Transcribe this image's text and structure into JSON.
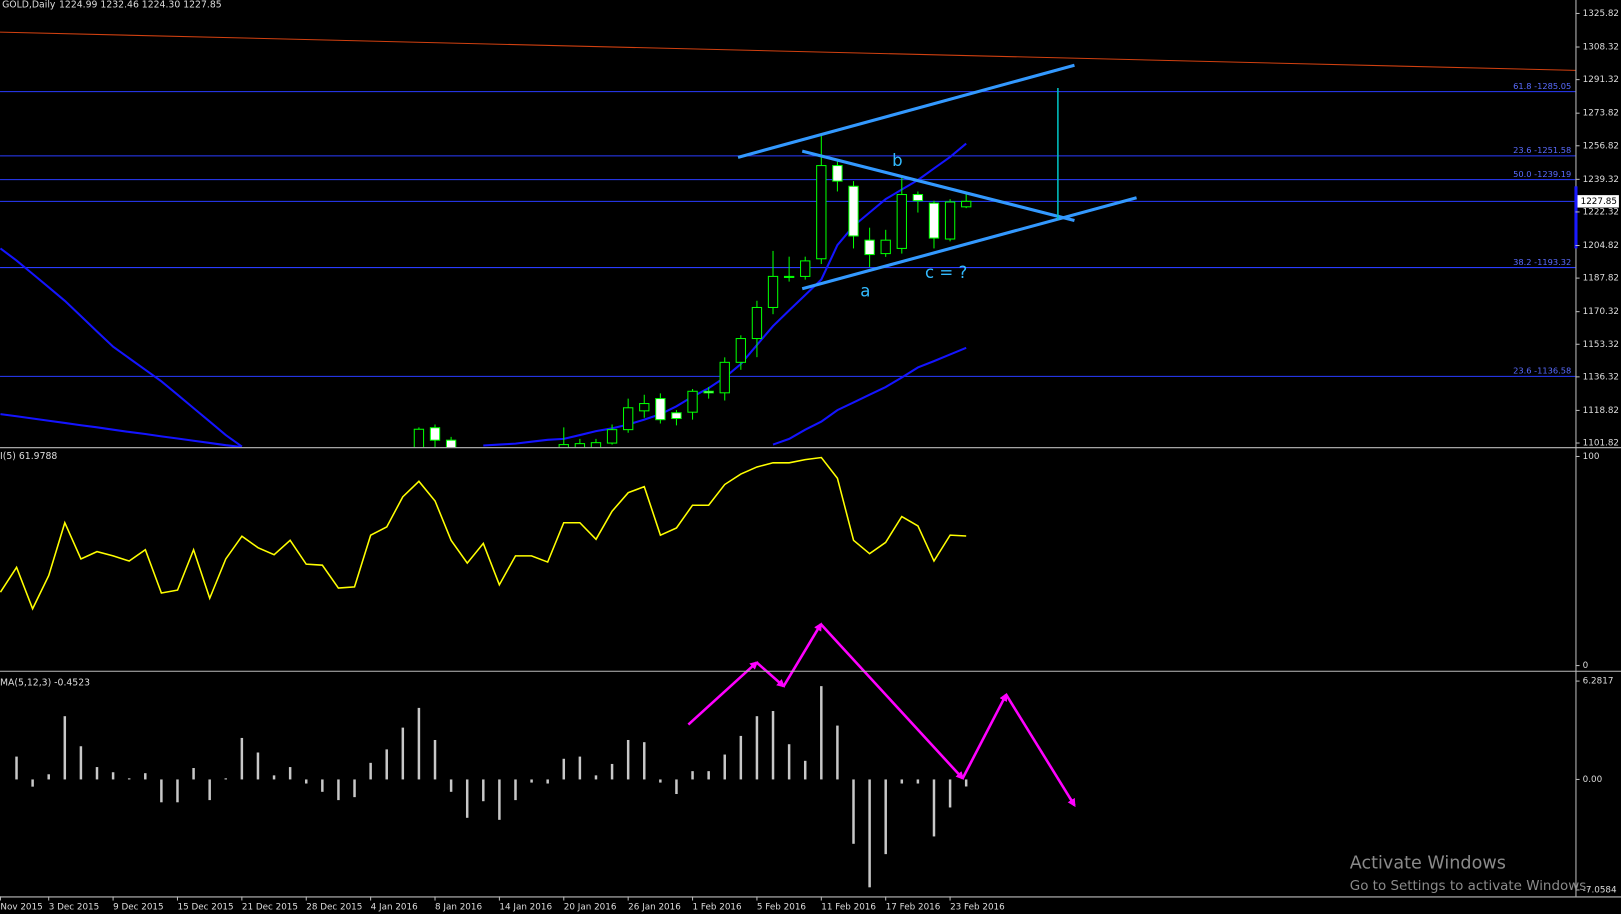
{
  "chart_data": [
    {
      "type": "candlestick",
      "title": "GOLD,Daily",
      "quote": "1224.99 1232.46 1224.30 1227.85",
      "ylim": [
        1099.66,
        1332.84
      ],
      "yticks": [
        1325.82,
        1308.32,
        1291.32,
        1273.82,
        1256.82,
        1239.32,
        1222.32,
        1204.82,
        1187.82,
        1170.32,
        1153.32,
        1136.32,
        1118.82,
        1101.82
      ],
      "last_price": 1227.85,
      "levels": [
        {
          "value": 1285.05,
          "label": "61.8 -1285.05"
        },
        {
          "value": 1251.58,
          "label": "23.6 -1251.58"
        },
        {
          "value": 1239.19,
          "label": "50.0 -1239.19"
        },
        {
          "value": 1193.32,
          "label": "38.2 -1193.32"
        },
        {
          "value": 1136.58,
          "label": "23.6 -1136.58"
        }
      ],
      "level_color": "#2a3cff",
      "colors": {
        "up": "#000000",
        "down": "#ffffff",
        "wick": "#00ff00"
      },
      "open": [
        null,
        null,
        null,
        null,
        null,
        null,
        null,
        null,
        null,
        null,
        null,
        null,
        null,
        null,
        null,
        null,
        null,
        null,
        null,
        null,
        null,
        null,
        null,
        null,
        null,
        null,
        1095,
        1109.8,
        1103.3,
        null,
        null,
        null,
        null,
        null,
        null,
        1095,
        1098,
        1099,
        1101.8,
        1108.8,
        1118.6,
        1125,
        1117.6,
        1117.9,
        1128.8,
        1128,
        1143.9,
        1156.3,
        1172.5,
        1188.7,
        1188.7,
        1197.9,
        1246.5,
        1235.7,
        1207.6,
        1200.6,
        1203.3,
        1231.4,
        1226.9,
        1208.2,
        1224.99
      ],
      "high": [
        null,
        null,
        null,
        null,
        null,
        null,
        null,
        null,
        null,
        null,
        null,
        null,
        null,
        null,
        null,
        null,
        null,
        null,
        null,
        null,
        null,
        null,
        null,
        null,
        null,
        null,
        1110,
        1111.5,
        1105,
        null,
        null,
        null,
        null,
        null,
        null,
        1110,
        1104,
        1104,
        1111.5,
        1125,
        1127,
        1127.7,
        1119,
        1130,
        1131,
        1146.5,
        1158,
        1176,
        1202,
        1199,
        1199,
        1262.7,
        1249.2,
        1238.4,
        1214.1,
        1213,
        1240,
        1233,
        1228.2,
        1229,
        1232.46
      ],
      "low": [
        null,
        null,
        null,
        null,
        null,
        null,
        null,
        null,
        null,
        null,
        null,
        null,
        null,
        null,
        null,
        null,
        null,
        null,
        null,
        null,
        null,
        null,
        null,
        null,
        null,
        null,
        1090,
        1095,
        1090,
        null,
        null,
        null,
        null,
        null,
        null,
        1092,
        1096,
        1097,
        1101,
        1107.2,
        1115,
        1112,
        1111,
        1114,
        1125,
        1124,
        1140,
        1146.6,
        1169,
        1186,
        1187,
        1195.2,
        1233,
        1203.3,
        1193.6,
        1198.9,
        1200.6,
        1222,
        1203.3,
        1207,
        1224.3
      ],
      "close": [
        null,
        null,
        null,
        null,
        null,
        null,
        null,
        null,
        null,
        null,
        null,
        null,
        null,
        null,
        null,
        null,
        null,
        null,
        null,
        null,
        null,
        null,
        null,
        null,
        null,
        null,
        1109,
        1103.3,
        1095,
        null,
        null,
        null,
        null,
        null,
        null,
        1101,
        1101.5,
        1102,
        1108.8,
        1120.2,
        1122.4,
        1114,
        1114.6,
        1128.8,
        1128,
        1143.9,
        1156.3,
        1172.5,
        1188.7,
        1188.2,
        1196.8,
        1246.5,
        1238.4,
        1209.8,
        1200.1,
        1207.6,
        1231.4,
        1228.2,
        1208.7,
        1227.5,
        1227.85
      ],
      "series": [
        {
          "color": "#1414ff",
          "values": [
            1116.9,
            1115.8,
            1114.6,
            1113.4,
            1112.3,
            1111.1,
            1110,
            1108.8,
            1107.6,
            1106.5,
            1105.3,
            1104.2,
            1103,
            1101.9,
            1100.7,
            1099.7,
            null,
            null,
            null,
            null,
            null,
            null,
            null,
            null,
            null,
            null,
            null,
            null,
            null,
            null,
            1100.5,
            1101,
            1101.5,
            1102.5,
            1103.5,
            1104,
            1106,
            1108,
            1109.5,
            1111.5,
            1114,
            1116.9,
            1121,
            1126,
            1130.4,
            1136,
            1143,
            1153,
            1162.8,
            1171,
            1179,
            1187.1,
            1205,
            1215,
            1222,
            1229,
            1234,
            1239,
            1245,
            1251,
            1258
          ]
        },
        {
          "color": "#1414ff",
          "values": [
            1203.3,
            1197,
            1190,
            1183,
            1176,
            1168,
            1160,
            1152,
            1146,
            1140,
            1134,
            1127,
            1120,
            1113,
            1106,
            1100,
            null,
            null,
            null,
            null,
            null,
            null,
            null,
            null,
            null,
            null,
            null,
            null,
            null,
            null,
            null,
            null,
            null,
            null,
            null,
            null,
            null,
            null,
            null,
            null,
            null,
            null,
            null,
            null,
            null,
            null,
            null,
            null,
            1101,
            1104,
            1108.8,
            1113,
            1119,
            1123,
            1127,
            1131,
            1136,
            1141.2,
            1144.5,
            1148,
            1151.5
          ]
        }
      ],
      "annotations": [
        "b",
        "a",
        "c = ?"
      ]
    },
    {
      "type": "line",
      "title": "I(5) 61.9788",
      "color": "#ffff00",
      "ylim": [
        -2.48,
        103.47
      ],
      "yticks": [
        100,
        0
      ],
      "values": [
        35.1,
        47,
        27.2,
        43.1,
        68.3,
        51,
        54.5,
        52.5,
        50,
        55.4,
        34.7,
        36.1,
        55.4,
        32.2,
        51,
        61.9,
        56.4,
        53,
        59.9,
        48.5,
        48,
        37.1,
        37.6,
        62.4,
        66.3,
        80.7,
        88.1,
        78.7,
        59.9,
        49,
        58.4,
        38.6,
        52.5,
        52.5,
        49.5,
        68.3,
        68.3,
        60.4,
        73.8,
        82.7,
        85.6,
        62.4,
        65.8,
        76.7,
        76.7,
        86.6,
        91.6,
        95,
        97,
        97,
        98.5,
        99.5,
        89.6,
        59.9,
        53.5,
        58.9,
        71.3,
        66.8,
        50,
        62.4,
        61.98
      ]
    },
    {
      "type": "bar",
      "title": "MA(5,12,3) -0.4523",
      "color": "#c8c8c8",
      "ylim": [
        -7.47,
        6.81
      ],
      "yticks": [
        6.2817,
        {
          "value": 0,
          "label": "0.00"
        },
        -7.0584
      ],
      "categories": [
        "Nov 2015",
        null,
        null,
        "3 Dec 2015",
        null,
        null,
        null,
        "9 Dec 2015",
        null,
        null,
        null,
        "15 Dec 2015",
        null,
        null,
        null,
        "21 Dec 2015",
        null,
        null,
        null,
        "28 Dec 2015",
        null,
        null,
        null,
        "4 Jan 2016",
        null,
        null,
        null,
        "8 Jan 2016",
        null,
        null,
        null,
        "14 Jan 2016",
        null,
        null,
        null,
        "20 Jan 2016",
        null,
        null,
        null,
        "26 Jan 2016",
        null,
        null,
        null,
        "1 Feb 2016",
        null,
        null,
        null,
        "5 Feb 2016",
        null,
        null,
        null,
        "11 Feb 2016",
        null,
        null,
        null,
        "17 Feb 2016",
        null,
        null,
        null,
        "23 Feb 2016",
        null
      ],
      "values": [
        null,
        1.46,
        -0.46,
        0.33,
        4.04,
        2.12,
        0.79,
        0.46,
        0.07,
        0.4,
        -1.46,
        -1.46,
        0.73,
        -1.32,
        0.07,
        2.65,
        1.72,
        0.26,
        0.79,
        -0.26,
        -0.79,
        -1.32,
        -1.13,
        1.06,
        1.92,
        3.31,
        4.57,
        2.52,
        -0.79,
        -2.45,
        -1.39,
        -2.58,
        -1.32,
        -0.2,
        -0.26,
        1.32,
        1.46,
        0.26,
        0.99,
        2.52,
        2.38,
        -0.2,
        -0.93,
        0.53,
        0.53,
        1.59,
        2.78,
        4.04,
        4.37,
        2.25,
        1.19,
        5.96,
        3.44,
        -4.11,
        -6.89,
        -4.77,
        -0.26,
        -0.26,
        -3.64,
        -1.79,
        -0.45
      ]
    }
  ],
  "watermark": {
    "title": "Activate Windows",
    "subtitle": "Go to Settings to activate Windows."
  }
}
